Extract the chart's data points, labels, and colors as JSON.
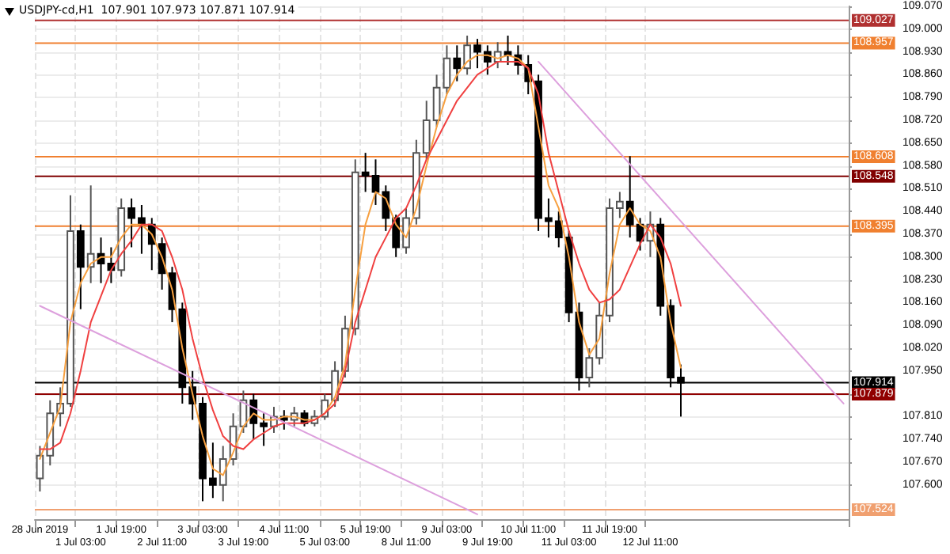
{
  "chart_data": {
    "type": "candlestick",
    "title": "USDJPY-cd,H1  107.901 107.973 107.871 107.914",
    "grid": true,
    "categories": [
      "28 Jun 2019",
      null,
      null,
      null,
      "1 Jul 03:00",
      null,
      null,
      null,
      "1 Jul 19:00",
      null,
      null,
      null,
      "2 Jul 11:00",
      null,
      null,
      null,
      "3 Jul 03:00",
      null,
      null,
      null,
      "3 Jul 19:00",
      null,
      null,
      null,
      "4 Jul 11:00",
      null,
      null,
      null,
      "5 Jul 03:00",
      null,
      null,
      null,
      "5 Jul 19:00",
      null,
      null,
      null,
      "8 Jul 11:00",
      null,
      null,
      null,
      "9 Jul 03:00",
      null,
      null,
      null,
      "9 Jul 19:00",
      null,
      null,
      null,
      "10 Jul 11:00",
      null,
      null,
      null,
      "11 Jul 03:00",
      null,
      null,
      null,
      "11 Jul 19:00",
      null,
      null,
      null,
      "12 Jul 11:00",
      null,
      null,
      null,
      null,
      null,
      null,
      null,
      null,
      null,
      null,
      null,
      null,
      null,
      null,
      null,
      null,
      null,
      null,
      null
    ],
    "ohlc": [
      [
        107.62,
        107.72,
        107.58,
        107.69
      ],
      [
        107.69,
        107.86,
        107.66,
        107.82
      ],
      [
        107.82,
        107.9,
        107.78,
        107.85
      ],
      [
        107.85,
        108.49,
        107.84,
        108.38
      ],
      [
        108.38,
        108.4,
        108.14,
        108.27
      ],
      [
        108.27,
        108.52,
        108.22,
        108.31
      ],
      [
        108.31,
        108.36,
        108.22,
        108.28
      ],
      [
        108.28,
        108.33,
        108.22,
        108.26
      ],
      [
        108.26,
        108.48,
        108.24,
        108.45
      ],
      [
        108.45,
        108.48,
        108.33,
        108.42
      ],
      [
        108.42,
        108.46,
        108.31,
        108.4
      ],
      [
        108.4,
        108.42,
        108.26,
        108.34
      ],
      [
        108.34,
        108.36,
        108.2,
        108.25
      ],
      [
        108.25,
        108.27,
        108.1,
        108.14
      ],
      [
        108.14,
        108.16,
        107.85,
        107.9
      ],
      [
        107.9,
        107.95,
        107.8,
        107.85
      ],
      [
        107.85,
        107.87,
        107.55,
        107.62
      ],
      [
        107.62,
        107.73,
        107.56,
        107.6
      ],
      [
        107.6,
        107.72,
        107.55,
        107.68
      ],
      [
        107.68,
        107.82,
        107.66,
        107.78
      ],
      [
        107.78,
        107.89,
        107.76,
        107.86
      ],
      [
        107.86,
        107.88,
        107.74,
        107.79
      ],
      [
        107.79,
        107.82,
        107.72,
        107.78
      ],
      [
        107.78,
        107.84,
        107.76,
        107.81
      ],
      [
        107.81,
        107.83,
        107.77,
        107.8
      ],
      [
        107.8,
        107.84,
        107.78,
        107.82
      ],
      [
        107.82,
        107.83,
        107.78,
        107.79
      ],
      [
        107.79,
        107.83,
        107.78,
        107.81
      ],
      [
        107.81,
        107.88,
        107.8,
        107.86
      ],
      [
        107.86,
        107.98,
        107.84,
        107.95
      ],
      [
        107.95,
        108.12,
        107.93,
        108.08
      ],
      [
        108.08,
        108.6,
        108.06,
        108.56
      ],
      [
        108.56,
        108.62,
        108.5,
        108.55
      ],
      [
        108.55,
        108.6,
        108.46,
        108.5
      ],
      [
        108.5,
        108.52,
        108.38,
        108.42
      ],
      [
        108.42,
        108.43,
        108.3,
        108.33
      ],
      [
        108.33,
        108.45,
        108.31,
        108.42
      ],
      [
        108.42,
        108.66,
        108.4,
        108.62
      ],
      [
        108.62,
        108.78,
        108.6,
        108.72
      ],
      [
        108.72,
        108.86,
        108.7,
        108.82
      ],
      [
        108.82,
        108.95,
        108.8,
        108.91
      ],
      [
        108.91,
        108.95,
        108.84,
        108.88
      ],
      [
        108.88,
        108.98,
        108.86,
        108.95
      ],
      [
        108.95,
        108.97,
        108.88,
        108.93
      ],
      [
        108.93,
        108.95,
        108.86,
        108.9
      ],
      [
        108.9,
        108.96,
        108.88,
        108.93
      ],
      [
        108.93,
        108.98,
        108.89,
        108.92
      ],
      [
        108.92,
        108.95,
        108.86,
        108.89
      ],
      [
        108.89,
        108.92,
        108.8,
        108.84
      ],
      [
        108.84,
        108.86,
        108.38,
        108.42
      ],
      [
        108.42,
        108.48,
        108.36,
        108.41
      ],
      [
        108.41,
        108.44,
        108.33,
        108.36
      ],
      [
        108.36,
        108.38,
        108.1,
        108.13
      ],
      [
        108.13,
        108.16,
        107.89,
        107.93
      ],
      [
        107.93,
        108.02,
        107.9,
        107.99
      ],
      [
        107.99,
        108.16,
        107.97,
        108.12
      ],
      [
        108.12,
        108.48,
        108.1,
        108.45
      ],
      [
        108.45,
        108.5,
        108.42,
        108.47
      ],
      [
        108.47,
        108.61,
        108.36,
        108.4
      ],
      [
        108.4,
        108.42,
        108.32,
        108.35
      ],
      [
        108.35,
        108.44,
        108.3,
        108.4
      ],
      [
        108.4,
        108.42,
        108.12,
        108.15
      ],
      [
        108.15,
        108.17,
        107.9,
        107.93
      ],
      [
        107.93,
        107.97,
        107.81,
        107.914
      ],
      null,
      null,
      null,
      null,
      null,
      null,
      null,
      null,
      null,
      null,
      null,
      null,
      null,
      null,
      null,
      null
    ],
    "series": [
      {
        "type": "line",
        "color": "#f7a040",
        "values": [
          107.68,
          107.76,
          107.84,
          108.1,
          108.22,
          108.28,
          108.3,
          108.3,
          108.36,
          108.4,
          108.4,
          108.37,
          108.3,
          108.2,
          108.02,
          107.88,
          107.75,
          107.65,
          107.63,
          107.7,
          107.78,
          107.82,
          107.8,
          107.8,
          107.81,
          107.81,
          107.8,
          107.8,
          107.82,
          107.87,
          107.97,
          108.2,
          108.4,
          108.5,
          108.48,
          108.4,
          108.36,
          108.45,
          108.58,
          108.7,
          108.8,
          108.86,
          108.9,
          108.92,
          108.92,
          108.91,
          108.92,
          108.91,
          108.88,
          108.7,
          108.52,
          108.45,
          108.3,
          108.1,
          108.0,
          108.05,
          108.25,
          108.4,
          108.45,
          108.4,
          108.38,
          108.3,
          108.1,
          107.96,
          null,
          null,
          null,
          null,
          null,
          null,
          null,
          null,
          null,
          null,
          null,
          null,
          null,
          null,
          null,
          null
        ]
      },
      {
        "type": "line",
        "color": "#f04040",
        "values": [
          107.71,
          107.71,
          107.73,
          107.82,
          107.95,
          108.1,
          108.18,
          108.26,
          108.31,
          108.35,
          108.4,
          108.4,
          108.38,
          108.3,
          108.2,
          108.05,
          107.93,
          107.83,
          107.75,
          107.72,
          107.71,
          107.74,
          107.76,
          107.78,
          107.79,
          107.79,
          107.79,
          107.8,
          107.82,
          107.85,
          107.95,
          108.1,
          108.2,
          108.3,
          108.36,
          108.42,
          108.45,
          108.52,
          108.6,
          108.66,
          108.72,
          108.78,
          108.82,
          108.86,
          108.88,
          108.9,
          108.9,
          108.9,
          108.88,
          108.8,
          108.62,
          108.5,
          108.38,
          108.28,
          108.2,
          108.16,
          108.17,
          108.2,
          108.27,
          108.34,
          108.4,
          108.36,
          108.28,
          108.15,
          null,
          null,
          null,
          null,
          null,
          null,
          null,
          null,
          null,
          null,
          null,
          null,
          null,
          null,
          null,
          null
        ]
      },
      {
        "type": "line",
        "color": "#dda0dd",
        "values": [
          108.15,
          null,
          null,
          null,
          null,
          null,
          null,
          null,
          null,
          null,
          null,
          null,
          null,
          null,
          null,
          null,
          null,
          null,
          null,
          null,
          null,
          null,
          null,
          null,
          null,
          null,
          null,
          null,
          null,
          null,
          null,
          null,
          null,
          null,
          null,
          null,
          null,
          null,
          null,
          null,
          null,
          null,
          null,
          107.51,
          null,
          null,
          null,
          null,
          null,
          null,
          null,
          null,
          null,
          null,
          null,
          null,
          null,
          null,
          null,
          null,
          null,
          null,
          null,
          null,
          null,
          null,
          null,
          null,
          null,
          null,
          null,
          null,
          null,
          null,
          null,
          null,
          null,
          null,
          null,
          null
        ]
      },
      {
        "type": "line",
        "color": "#dda0dd",
        "values": [
          null,
          null,
          null,
          null,
          null,
          null,
          null,
          null,
          null,
          null,
          null,
          null,
          null,
          null,
          null,
          null,
          null,
          null,
          null,
          null,
          null,
          null,
          null,
          null,
          null,
          null,
          null,
          null,
          null,
          null,
          null,
          null,
          null,
          null,
          null,
          null,
          null,
          null,
          null,
          null,
          null,
          null,
          null,
          null,
          null,
          null,
          null,
          null,
          null,
          108.9,
          null,
          null,
          null,
          null,
          null,
          null,
          null,
          null,
          null,
          null,
          null,
          null,
          null,
          null,
          null,
          null,
          null,
          null,
          null,
          null,
          null,
          null,
          null,
          null,
          null,
          null,
          null,
          null,
          null,
          107.85
        ]
      }
    ],
    "marker": "none",
    "ylim": [
      107.495,
      109.07
    ],
    "yticks": [
      {
        "value": 107.6,
        "label": "107.600"
      },
      {
        "value": 107.67,
        "label": "107.670"
      },
      {
        "value": 107.74,
        "label": "107.740"
      },
      {
        "value": 107.81,
        "label": "107.810"
      },
      {
        "value": 107.88,
        "label": null
      },
      {
        "value": 107.95,
        "label": "107.950"
      },
      {
        "value": 108.02,
        "label": "108.020"
      },
      {
        "value": 108.09,
        "label": "108.090"
      },
      {
        "value": 108.16,
        "label": "108.160"
      },
      {
        "value": 108.23,
        "label": "108.230"
      },
      {
        "value": 108.3,
        "label": "108.300"
      },
      {
        "value": 108.37,
        "label": "108.370"
      },
      {
        "value": 108.44,
        "label": "108.440"
      },
      {
        "value": 108.51,
        "label": "108.510"
      },
      {
        "value": 108.58,
        "label": "108.580"
      },
      {
        "value": 108.65,
        "label": "108.650"
      },
      {
        "value": 108.72,
        "label": "108.720"
      },
      {
        "value": 108.79,
        "label": "108.790"
      },
      {
        "value": 108.86,
        "label": "108.860"
      },
      {
        "value": 108.93,
        "label": "108.930"
      },
      {
        "value": 109.0,
        "label": "109.000"
      },
      {
        "value": 109.07,
        "label": "109.070"
      }
    ],
    "ref_lines": [
      {
        "axis": "y",
        "value": 109.027,
        "label": "109.027",
        "color": "#b03030"
      },
      {
        "axis": "y",
        "value": 108.957,
        "label": "108.957",
        "color": "#f08030"
      },
      {
        "axis": "y",
        "value": 108.608,
        "label": "108.608",
        "color": "#f08030"
      },
      {
        "axis": "y",
        "value": 108.548,
        "label": "108.548",
        "color": "#800000"
      },
      {
        "axis": "y",
        "value": 108.395,
        "label": "108.395",
        "color": "#f08030"
      },
      {
        "axis": "y",
        "value": 107.914,
        "label": "107.914",
        "color": "#000000"
      },
      {
        "axis": "y",
        "value": 107.879,
        "label": "107.879",
        "color": "#900000"
      },
      {
        "axis": "y",
        "value": 107.524,
        "label": "107.524",
        "color": "#f0a070"
      }
    ]
  }
}
